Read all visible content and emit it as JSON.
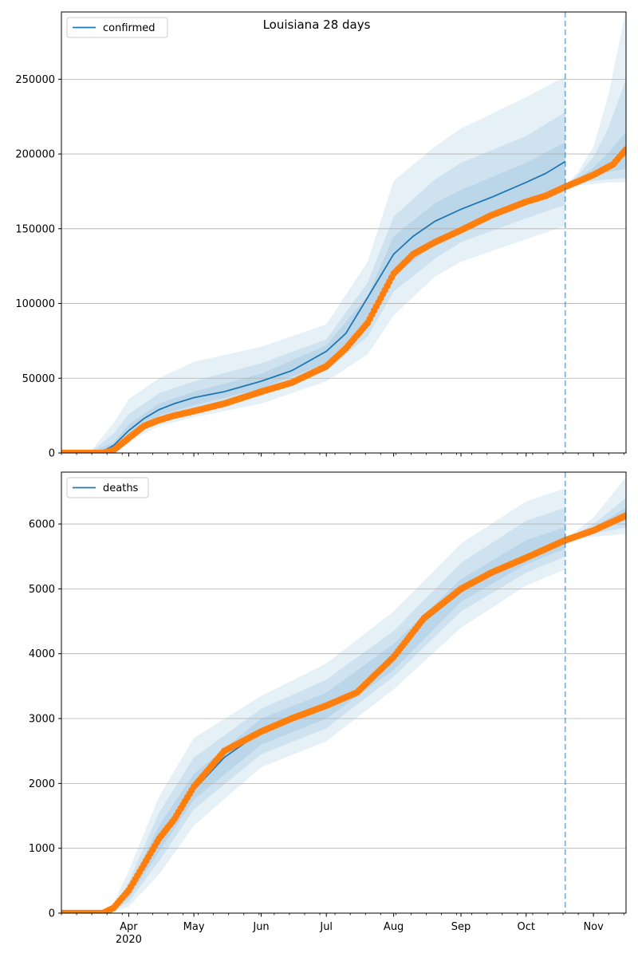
{
  "figure": {
    "title": "Louisiana 28 days",
    "forecast_start_date": "2020-10-19"
  },
  "colors": {
    "model": "#1f77b4",
    "observed": "#ff7f0e",
    "band": "#c6dbef",
    "grid": "#b0b0b0",
    "forecast_line": "#1f77b4"
  },
  "chart_data": [
    {
      "type": "line",
      "legend": "confirmed",
      "legend_placement": "top-left",
      "grid": "horizontal",
      "xlim": [
        "2020-03-01",
        "2020-11-16"
      ],
      "ylim": [
        0,
        295000
      ],
      "yticks": [
        0,
        50000,
        100000,
        150000,
        200000,
        250000
      ],
      "ytick_labels": [
        "0",
        "50000",
        "100000",
        "150000",
        "200000",
        "250000"
      ],
      "series": [
        {
          "name": "confirmed",
          "kind": "model-median",
          "x": [
            "2020-03-01",
            "2020-03-15",
            "2020-03-20",
            "2020-03-25",
            "2020-04-01",
            "2020-04-08",
            "2020-04-15",
            "2020-04-22",
            "2020-05-01",
            "2020-05-15",
            "2020-06-01",
            "2020-06-15",
            "2020-07-01",
            "2020-07-10",
            "2020-07-20",
            "2020-08-01",
            "2020-08-10",
            "2020-08-20",
            "2020-09-01",
            "2020-09-15",
            "2020-10-01",
            "2020-10-10",
            "2020-10-19"
          ],
          "y": [
            0,
            0,
            1000,
            5000,
            15000,
            23000,
            29000,
            33000,
            37000,
            41000,
            48000,
            55000,
            68000,
            80000,
            104000,
            133000,
            145000,
            155000,
            163000,
            171000,
            181000,
            187000,
            195000
          ]
        },
        {
          "name": "observed",
          "kind": "observed-points",
          "x": [
            "2020-03-01",
            "2020-03-20",
            "2020-03-25",
            "2020-04-01",
            "2020-04-08",
            "2020-04-15",
            "2020-04-22",
            "2020-05-01",
            "2020-05-15",
            "2020-06-01",
            "2020-06-15",
            "2020-07-01",
            "2020-07-10",
            "2020-07-20",
            "2020-08-01",
            "2020-08-10",
            "2020-08-20",
            "2020-09-01",
            "2020-09-15",
            "2020-10-01",
            "2020-10-10",
            "2020-10-19",
            "2020-11-01",
            "2020-11-10",
            "2020-11-16"
          ],
          "y": [
            0,
            0,
            1800,
            10000,
            18000,
            22000,
            25000,
            28000,
            33000,
            41000,
            47000,
            58000,
            70000,
            87000,
            120000,
            133000,
            141000,
            149000,
            159000,
            168000,
            172000,
            178000,
            186000,
            193000,
            203000
          ]
        }
      ],
      "bands": [
        {
          "x": [
            "2020-03-01",
            "2020-03-15",
            "2020-03-25",
            "2020-04-01",
            "2020-04-15",
            "2020-05-01",
            "2020-06-01",
            "2020-07-01",
            "2020-07-20",
            "2020-08-01",
            "2020-08-20",
            "2020-09-01",
            "2020-10-01",
            "2020-10-19"
          ],
          "low": [
            0,
            0,
            2000,
            8000,
            18000,
            24000,
            33000,
            48000,
            66000,
            92000,
            118000,
            128000,
            143000,
            152000
          ],
          "high": [
            0,
            2000,
            20000,
            36000,
            50000,
            61000,
            71000,
            86000,
            128000,
            182000,
            205000,
            217000,
            238000,
            252000
          ]
        },
        {
          "x": [
            "2020-03-01",
            "2020-03-15",
            "2020-03-25",
            "2020-04-01",
            "2020-04-15",
            "2020-05-01",
            "2020-06-01",
            "2020-07-01",
            "2020-07-20",
            "2020-08-01",
            "2020-08-20",
            "2020-09-01",
            "2020-10-01",
            "2020-10-19"
          ],
          "low": [
            0,
            0,
            3000,
            10000,
            22000,
            28000,
            38000,
            55000,
            78000,
            108000,
            130000,
            141000,
            157000,
            166000
          ],
          "high": [
            0,
            1500,
            13000,
            26000,
            40000,
            48000,
            60000,
            76000,
            114000,
            158000,
            183000,
            194000,
            212000,
            228000
          ]
        },
        {
          "x": [
            "2020-03-01",
            "2020-03-15",
            "2020-03-25",
            "2020-04-01",
            "2020-04-15",
            "2020-05-01",
            "2020-06-01",
            "2020-07-01",
            "2020-07-20",
            "2020-08-01",
            "2020-08-20",
            "2020-09-01",
            "2020-10-01",
            "2020-10-19"
          ],
          "low": [
            0,
            0,
            4000,
            12000,
            25000,
            32000,
            43000,
            60000,
            88000,
            118000,
            140000,
            151000,
            167000,
            178000
          ],
          "high": [
            0,
            1000,
            7000,
            19000,
            33000,
            41000,
            53000,
            72000,
            105000,
            145000,
            167000,
            176000,
            194000,
            208000
          ]
        },
        {
          "x": [
            "2020-10-19",
            "2020-10-25",
            "2020-11-01",
            "2020-11-08",
            "2020-11-16"
          ],
          "low": [
            177000,
            179000,
            180000,
            181000,
            181000
          ],
          "high": [
            179000,
            188000,
            205000,
            240000,
            297000
          ]
        },
        {
          "x": [
            "2020-10-19",
            "2020-10-25",
            "2020-11-01",
            "2020-11-08",
            "2020-11-16"
          ],
          "low": [
            177000,
            180000,
            182000,
            183000,
            184000
          ],
          "high": [
            179000,
            186000,
            198000,
            218000,
            250000
          ]
        },
        {
          "x": [
            "2020-10-19",
            "2020-10-25",
            "2020-11-01",
            "2020-11-08",
            "2020-11-16"
          ],
          "low": [
            177000,
            181000,
            185000,
            188000,
            190000
          ],
          "high": [
            179000,
            184000,
            191000,
            201000,
            215000
          ]
        }
      ],
      "vline": "2020-10-19"
    },
    {
      "type": "line",
      "legend": "deaths",
      "legend_placement": "top-left",
      "grid": "horizontal",
      "xlim": [
        "2020-03-01",
        "2020-11-16"
      ],
      "ylim": [
        0,
        6800
      ],
      "yticks": [
        0,
        1000,
        2000,
        3000,
        4000,
        5000,
        6000
      ],
      "ytick_labels": [
        "0",
        "1000",
        "2000",
        "3000",
        "4000",
        "5000",
        "6000"
      ],
      "xtick_labels": [
        "Apr",
        "May",
        "Jun",
        "Jul",
        "Aug",
        "Sep",
        "Oct",
        "Nov"
      ],
      "xtick_dates": [
        "2020-04-01",
        "2020-05-01",
        "2020-06-01",
        "2020-07-01",
        "2020-08-01",
        "2020-09-01",
        "2020-10-01",
        "2020-11-01"
      ],
      "year_label": "2020",
      "series": [
        {
          "name": "deaths",
          "kind": "model-median",
          "x": [
            "2020-03-01",
            "2020-03-20",
            "2020-03-25",
            "2020-04-01",
            "2020-04-08",
            "2020-04-15",
            "2020-04-22",
            "2020-05-01",
            "2020-05-15",
            "2020-06-01",
            "2020-06-15",
            "2020-07-01",
            "2020-07-15",
            "2020-08-01",
            "2020-08-15",
            "2020-09-01",
            "2020-09-15",
            "2020-10-01",
            "2020-10-19"
          ],
          "y": [
            0,
            0,
            50,
            300,
            700,
            1150,
            1500,
            1900,
            2400,
            2800,
            3000,
            3200,
            3400,
            3900,
            4500,
            4950,
            5250,
            5500,
            5750
          ]
        },
        {
          "name": "observed",
          "kind": "observed-points",
          "x": [
            "2020-03-01",
            "2020-03-20",
            "2020-03-25",
            "2020-04-01",
            "2020-04-08",
            "2020-04-15",
            "2020-04-22",
            "2020-05-01",
            "2020-05-15",
            "2020-06-01",
            "2020-06-15",
            "2020-07-01",
            "2020-07-15",
            "2020-08-01",
            "2020-08-15",
            "2020-09-01",
            "2020-09-15",
            "2020-10-01",
            "2020-10-19",
            "2020-11-01",
            "2020-11-16"
          ],
          "y": [
            0,
            0,
            80,
            350,
            750,
            1150,
            1450,
            1950,
            2500,
            2800,
            3000,
            3200,
            3400,
            3950,
            4550,
            5000,
            5250,
            5480,
            5750,
            5900,
            6130
          ]
        }
      ],
      "bands": [
        {
          "x": [
            "2020-03-01",
            "2020-03-20",
            "2020-03-25",
            "2020-04-01",
            "2020-04-15",
            "2020-05-01",
            "2020-06-01",
            "2020-07-01",
            "2020-08-01",
            "2020-09-01",
            "2020-10-01",
            "2020-10-19"
          ],
          "low": [
            0,
            0,
            20,
            100,
            600,
            1350,
            2250,
            2650,
            3450,
            4400,
            5050,
            5300
          ],
          "high": [
            0,
            0,
            150,
            650,
            1800,
            2700,
            3350,
            3850,
            4650,
            5700,
            6350,
            6550
          ]
        },
        {
          "x": [
            "2020-03-01",
            "2020-03-20",
            "2020-03-25",
            "2020-04-01",
            "2020-04-15",
            "2020-05-01",
            "2020-06-01",
            "2020-07-01",
            "2020-08-01",
            "2020-09-01",
            "2020-10-01",
            "2020-10-19"
          ],
          "low": [
            0,
            0,
            30,
            180,
            800,
            1600,
            2450,
            2850,
            3650,
            4650,
            5250,
            5500
          ],
          "high": [
            0,
            0,
            100,
            480,
            1550,
            2400,
            3150,
            3600,
            4350,
            5400,
            6050,
            6250
          ]
        },
        {
          "x": [
            "2020-03-01",
            "2020-03-20",
            "2020-03-25",
            "2020-04-01",
            "2020-04-15",
            "2020-05-01",
            "2020-06-01",
            "2020-07-01",
            "2020-08-01",
            "2020-09-01",
            "2020-10-01",
            "2020-10-19"
          ],
          "low": [
            0,
            0,
            40,
            240,
            950,
            1750,
            2600,
            3000,
            3750,
            4800,
            5380,
            5620
          ],
          "high": [
            0,
            0,
            70,
            380,
            1350,
            2150,
            3000,
            3400,
            4150,
            5150,
            5750,
            5950
          ]
        },
        {
          "x": [
            "2020-10-19",
            "2020-11-01",
            "2020-11-16"
          ],
          "low": [
            5740,
            5800,
            5850
          ],
          "high": [
            5760,
            6100,
            6720
          ]
        },
        {
          "x": [
            "2020-10-19",
            "2020-11-01",
            "2020-11-16"
          ],
          "low": [
            5745,
            5850,
            5950
          ],
          "high": [
            5755,
            6000,
            6400
          ]
        },
        {
          "x": [
            "2020-10-19",
            "2020-11-01",
            "2020-11-16"
          ],
          "low": [
            5748,
            5890,
            6050
          ],
          "high": [
            5752,
            5950,
            6250
          ]
        }
      ],
      "vline": "2020-10-19"
    }
  ]
}
